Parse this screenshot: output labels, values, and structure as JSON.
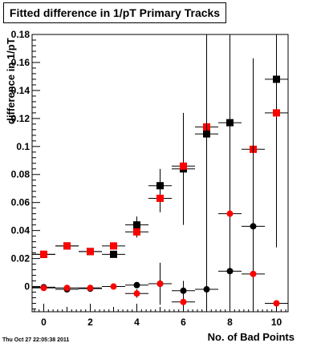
{
  "chart_data": {
    "type": "scatter",
    "title": "Fitted difference in 1/pT Primary Tracks",
    "xlabel": "No. of Bad Points",
    "ylabel": "difference in 1/pT",
    "xlim": [
      -0.5,
      10.5
    ],
    "ylim": [
      -0.018,
      0.18
    ],
    "x_ticks": [
      0,
      2,
      4,
      6,
      8,
      10
    ],
    "y_ticks": [
      0,
      0.02,
      0.04,
      0.06,
      0.08,
      0.1,
      0.12,
      0.14,
      0.16,
      0.18
    ],
    "y_tick_labels": [
      "0",
      "0.02",
      "0.04",
      "0.06",
      "0.08",
      "0.1",
      "0.12",
      "0.14",
      "0.16",
      "0.18"
    ],
    "grid": false,
    "legend": "none",
    "timestamp": "Thu Oct 27 22:05:38 2011",
    "series": [
      {
        "marker": "square",
        "color": "#000000",
        "x": [
          0,
          1,
          2,
          3,
          4,
          5,
          6,
          7,
          8,
          9,
          10
        ],
        "y": [
          0.023,
          0.029,
          0.025,
          0.023,
          0.044,
          0.072,
          0.084,
          0.109,
          0.117,
          null,
          0.148
        ],
        "yerr": [
          0.0005,
          0.0006,
          0.0008,
          0.0015,
          0.006,
          0.012,
          0.04,
          0.12,
          0.12,
          0,
          0.12
        ]
      },
      {
        "marker": "square",
        "color": "#ff0000",
        "x": [
          0,
          1,
          2,
          3,
          4,
          5,
          6,
          7,
          8,
          9,
          10
        ],
        "y": [
          0.023,
          0.029,
          0.025,
          0.029,
          0.039,
          0.063,
          0.086,
          0.114,
          null,
          0.098,
          0.124
        ],
        "yerr": [
          0.0005,
          0.0006,
          0.0008,
          0.001,
          0.004,
          0.01,
          0.003,
          0,
          0,
          0,
          0
        ]
      },
      {
        "marker": "circle",
        "color": "#000000",
        "x": [
          0,
          1,
          2,
          3,
          4,
          5,
          6,
          7,
          8,
          9,
          10
        ],
        "y": [
          -0.0005,
          -0.002,
          -0.0015,
          null,
          0.001,
          0.002,
          -0.003,
          -0.002,
          0.011,
          0.043,
          null
        ],
        "yerr": [
          0.0005,
          0.0006,
          0.0008,
          0,
          0.002,
          0.015,
          0.007,
          0.12,
          0.12,
          0.12,
          0
        ]
      },
      {
        "marker": "circle",
        "color": "#ff0000",
        "x": [
          0,
          1,
          2,
          3,
          4,
          5,
          6,
          7,
          8,
          9,
          10
        ],
        "y": [
          -0.001,
          -0.001,
          -0.001,
          0.0,
          -0.005,
          0.002,
          -0.011,
          null,
          0.052,
          0.009,
          -0.012
        ],
        "yerr": [
          0.0005,
          0.0006,
          0.0008,
          0.0008,
          0.003,
          0.003,
          0.003,
          0,
          0,
          0,
          0
        ]
      }
    ]
  }
}
